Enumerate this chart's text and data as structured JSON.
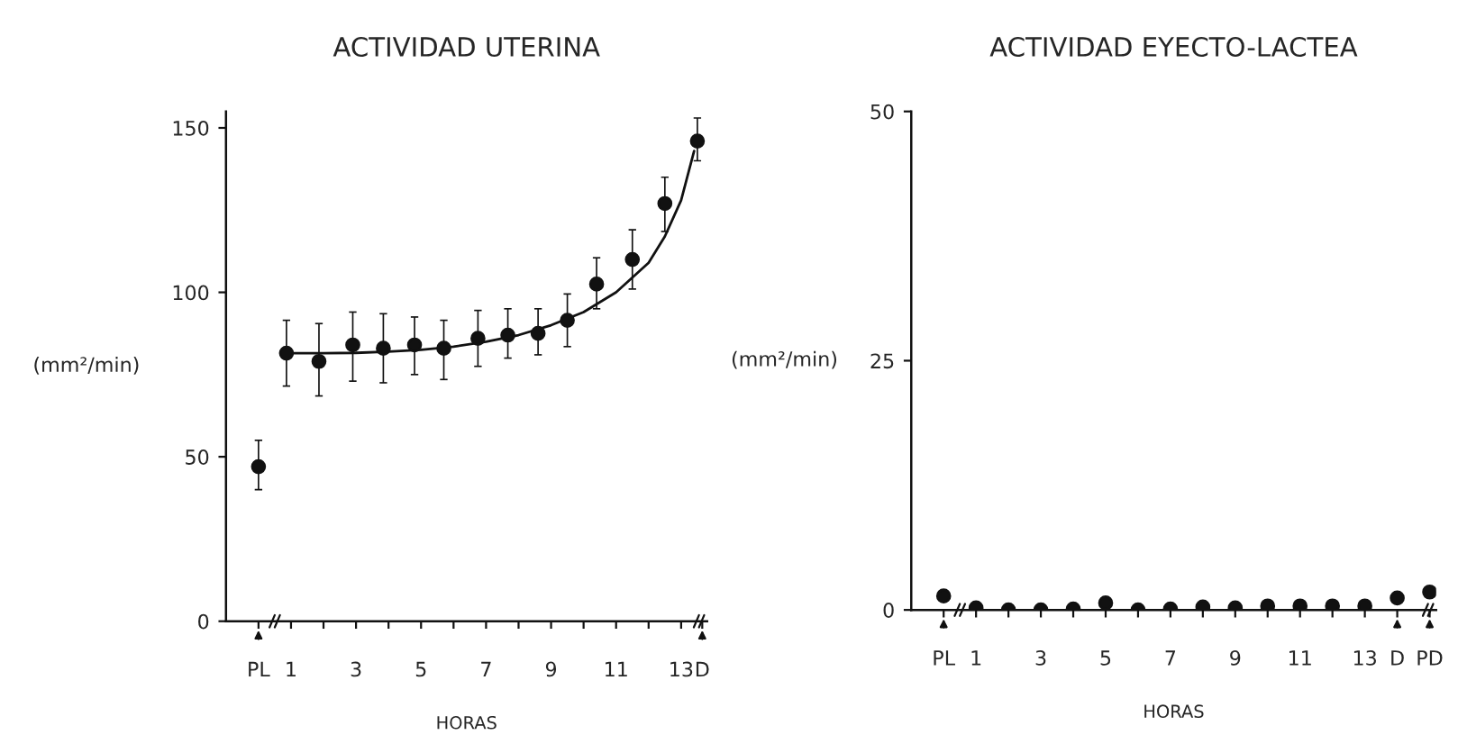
{
  "chart_data": [
    {
      "type": "scatter",
      "title": "ACTIVIDAD UTERINA",
      "xlabel": "HORAS",
      "ylabel": "(mm²/min)",
      "xlim": [
        -1,
        13.8
      ],
      "ylim": [
        0,
        155
      ],
      "yticks": [
        0,
        50,
        100,
        150
      ],
      "xticks": [
        {
          "value": 0,
          "label": "PL"
        },
        1,
        {
          "value": 2,
          "label": null
        },
        3,
        {
          "value": 4,
          "label": null
        },
        5,
        {
          "value": 6,
          "label": null
        },
        7,
        {
          "value": 8,
          "label": null
        },
        9,
        {
          "value": 10,
          "label": null
        },
        11,
        {
          "value": 12,
          "label": null
        },
        13,
        {
          "value": 13.65,
          "label": "D"
        }
      ],
      "grid": false,
      "legend": false,
      "marker": "circle",
      "series": [
        {
          "color": "#111111",
          "x": [
            0,
            0.86,
            1.86,
            2.9,
            3.84,
            4.8,
            5.7,
            6.75,
            7.67,
            8.6,
            9.5,
            10.4,
            11.5,
            12.5,
            13.5
          ],
          "values": [
            47,
            81.5,
            79,
            84,
            83,
            84,
            83,
            86,
            87,
            87.5,
            91.5,
            102.5,
            110,
            127,
            146
          ],
          "errors": [
            [
              40,
              55
            ],
            [
              71.5,
              91.5
            ],
            [
              68.5,
              90.5
            ],
            [
              73,
              94
            ],
            [
              72.5,
              93.5
            ],
            [
              75,
              92.5
            ],
            [
              73.5,
              91.5
            ],
            [
              77.5,
              94.5
            ],
            [
              80,
              95
            ],
            [
              81,
              95
            ],
            [
              83.5,
              99.5
            ],
            [
              95,
              110.5
            ],
            [
              101,
              119
            ],
            [
              118.5,
              135
            ],
            [
              140,
              153
            ]
          ]
        },
        {
          "type": "line",
          "marker": "none",
          "color": "#111111",
          "x": [
            0.86,
            2,
            3,
            4,
            5,
            6,
            7,
            8,
            9,
            10,
            11,
            12,
            12.5,
            13,
            13.4
          ],
          "values": [
            81.5,
            81.5,
            81.6,
            82,
            82.5,
            83.5,
            85,
            87,
            90,
            94,
            100,
            109,
            117,
            128,
            143
          ]
        }
      ]
    },
    {
      "type": "scatter",
      "title": "ACTIVIDAD EYECTO-LACTEA",
      "xlabel": "HORAS",
      "ylabel": "(mm²/min)",
      "xlim": [
        -1,
        15.2
      ],
      "ylim": [
        0,
        50
      ],
      "yticks": [
        0,
        25,
        50
      ],
      "xticks": [
        {
          "value": 0,
          "label": "PL"
        },
        1,
        {
          "value": 2,
          "label": null
        },
        3,
        {
          "value": 4,
          "label": null
        },
        5,
        {
          "value": 6,
          "label": null
        },
        7,
        {
          "value": 8,
          "label": null
        },
        9,
        {
          "value": 10,
          "label": null
        },
        11,
        {
          "value": 12,
          "label": null
        },
        13,
        {
          "value": 14,
          "label": "D"
        },
        {
          "value": 15,
          "label": "PD"
        }
      ],
      "grid": false,
      "legend": false,
      "marker": "circle",
      "series": [
        {
          "color": "#111111",
          "x": [
            0,
            1,
            2,
            3,
            4,
            5,
            6,
            7,
            8,
            9,
            10,
            11,
            12,
            13,
            14,
            15
          ],
          "values": [
            1.4,
            0.2,
            0,
            0,
            0.1,
            0.7,
            0,
            0.1,
            0.3,
            0.2,
            0.4,
            0.4,
            0.4,
            0.4,
            1.2,
            1.8
          ]
        }
      ]
    }
  ]
}
